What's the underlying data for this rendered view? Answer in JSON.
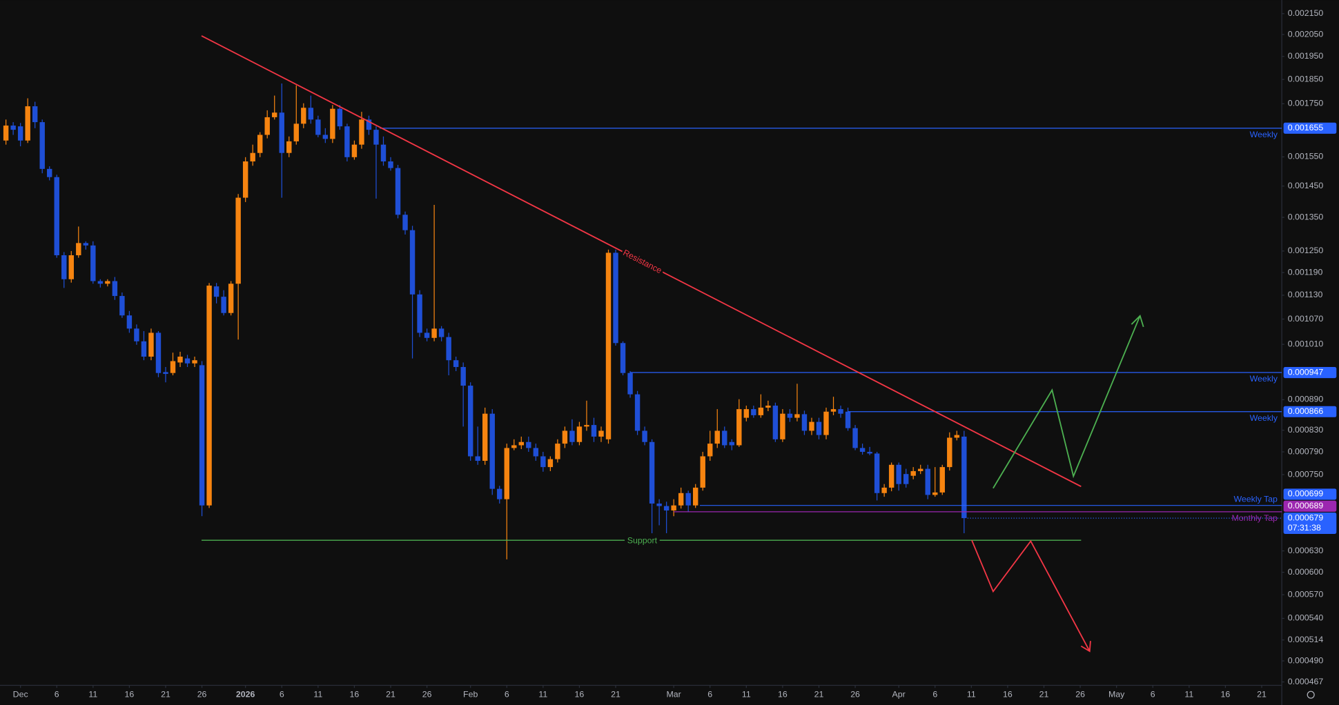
{
  "chart_data": {
    "type": "candlestick",
    "up_color": "#f68410",
    "down_color": "#1f4fd6",
    "log_scale": true,
    "xlim": [
      -2.82,
      173.65
    ],
    "ylim": [
      0.000467,
      0.00215
    ],
    "xticks": [
      {
        "value": 0,
        "label": "Dec"
      },
      {
        "value": 5,
        "label": "6"
      },
      {
        "value": 10,
        "label": "11"
      },
      {
        "value": 15,
        "label": "16"
      },
      {
        "value": 20,
        "label": "21"
      },
      {
        "value": 25,
        "label": "26"
      },
      {
        "value": 31,
        "label": "2026",
        "bold": true
      },
      {
        "value": 36,
        "label": "6"
      },
      {
        "value": 41,
        "label": "11"
      },
      {
        "value": 46,
        "label": "16"
      },
      {
        "value": 51,
        "label": "21"
      },
      {
        "value": 56,
        "label": "26"
      },
      {
        "value": 62,
        "label": "Feb"
      },
      {
        "value": 67,
        "label": "6"
      },
      {
        "value": 72,
        "label": "11"
      },
      {
        "value": 77,
        "label": "16"
      },
      {
        "value": 82,
        "label": "21"
      },
      {
        "value": 90,
        "label": "Mar"
      },
      {
        "value": 95,
        "label": "6"
      },
      {
        "value": 100,
        "label": "11"
      },
      {
        "value": 105,
        "label": "16"
      },
      {
        "value": 110,
        "label": "21"
      },
      {
        "value": 115,
        "label": "26"
      },
      {
        "value": 121,
        "label": "Apr"
      },
      {
        "value": 126,
        "label": "6"
      },
      {
        "value": 131,
        "label": "11"
      },
      {
        "value": 136,
        "label": "16"
      },
      {
        "value": 141,
        "label": "21"
      },
      {
        "value": 146,
        "label": "26"
      },
      {
        "value": 151,
        "label": "May"
      },
      {
        "value": 156,
        "label": "6"
      },
      {
        "value": 161,
        "label": "11"
      },
      {
        "value": 166,
        "label": "16"
      },
      {
        "value": 171,
        "label": "21"
      }
    ],
    "yticks": [
      {
        "value": 0.00215,
        "label": "0.002150"
      },
      {
        "value": 0.00205,
        "label": "0.002050"
      },
      {
        "value": 0.00195,
        "label": "0.001950"
      },
      {
        "value": 0.00185,
        "label": "0.001850"
      },
      {
        "value": 0.00175,
        "label": "0.001750"
      },
      {
        "value": 0.00155,
        "label": "0.001550"
      },
      {
        "value": 0.00145,
        "label": "0.001450"
      },
      {
        "value": 0.00135,
        "label": "0.001350"
      },
      {
        "value": 0.00125,
        "label": "0.001250"
      },
      {
        "value": 0.00119,
        "label": "0.001190"
      },
      {
        "value": 0.00113,
        "label": "0.001130"
      },
      {
        "value": 0.00107,
        "label": "0.001070"
      },
      {
        "value": 0.00101,
        "label": "0.001010"
      },
      {
        "value": 0.00089,
        "label": "0.000890"
      },
      {
        "value": 0.00083,
        "label": "0.000830"
      },
      {
        "value": 0.00079,
        "label": "0.000790"
      },
      {
        "value": 0.00075,
        "label": "0.000750"
      },
      {
        "value": 0.00063,
        "label": "0.000630"
      },
      {
        "value": 0.0006,
        "label": "0.000600"
      },
      {
        "value": 0.00057,
        "label": "0.000570"
      },
      {
        "value": 0.00054,
        "label": "0.000540"
      },
      0.000514,
      {
        "value": 0.00049,
        "label": "0.000490"
      },
      0.000467
    ],
    "levels": [
      {
        "value": 0.001655,
        "label": "0.001655",
        "name": "Weekly",
        "color": "#2962ff",
        "from": 49.5
      },
      {
        "value": 0.000947,
        "label": "0.000947",
        "name": "Weekly",
        "color": "#2962ff",
        "from": 84
      },
      {
        "value": 0.000866,
        "label": "0.000866",
        "name": "Weekly",
        "color": "#2962ff",
        "from": 114
      },
      {
        "value": 0.000699,
        "label": "0.000699",
        "name": "Weekly Tap",
        "color": "#2962ff",
        "from": 93.6
      },
      {
        "value": 0.000689,
        "label": "0.000689",
        "name": "Monthly Tap",
        "color": "#9c27b0",
        "from": 90
      }
    ],
    "last_price": {
      "value": 0.000679,
      "label": "0.000679",
      "countdown": "07:31:38",
      "color": "#2962ff"
    },
    "annotations": {
      "resistance": "Resistance",
      "support": "Support"
    },
    "x": [
      -2,
      -1,
      0,
      1,
      2,
      3,
      4,
      5,
      6,
      7,
      8,
      9,
      10,
      11,
      12,
      13,
      14,
      15,
      16,
      17,
      18,
      19,
      20,
      21,
      22,
      23,
      24,
      25,
      26,
      27,
      28,
      29,
      30,
      31,
      32,
      33,
      34,
      35,
      36,
      37,
      38,
      39,
      40,
      41,
      42,
      43,
      44,
      45,
      46,
      47,
      48,
      49,
      50,
      51,
      52,
      53,
      54,
      55,
      56,
      57,
      58,
      59,
      60,
      61,
      62,
      63,
      64,
      65,
      66,
      67,
      68,
      69,
      70,
      71,
      72,
      73,
      74,
      75,
      76,
      77,
      78,
      79,
      80,
      81,
      82,
      83,
      84,
      85,
      86,
      87,
      88,
      89,
      90,
      91,
      92,
      93,
      94,
      95,
      96,
      97,
      98,
      99,
      100,
      101,
      102,
      103,
      104,
      105,
      106,
      107,
      108,
      109,
      110,
      111,
      112,
      113,
      114,
      115,
      116,
      117,
      118,
      119,
      120,
      121,
      122,
      123,
      124,
      125,
      126,
      127,
      128,
      129,
      130
    ],
    "ohlc": [
      [
        0.001609,
        0.001688,
        0.001594,
        0.001665
      ],
      [
        0.001665,
        0.001678,
        0.00163,
        0.001649
      ],
      [
        0.001662,
        0.001675,
        0.001588,
        0.001609
      ],
      [
        0.001609,
        0.001772,
        0.0016,
        0.00174
      ],
      [
        0.00174,
        0.001758,
        0.001655,
        0.001678
      ],
      [
        0.001678,
        0.001688,
        0.001493,
        0.001508
      ],
      [
        0.001508,
        0.001517,
        0.001469,
        0.00148
      ],
      [
        0.00148,
        0.001488,
        0.001231,
        0.001238
      ],
      [
        0.001238,
        0.001247,
        0.001149,
        0.001172
      ],
      [
        0.001172,
        0.00125,
        0.001163,
        0.001238
      ],
      [
        0.001238,
        0.001322,
        0.001231,
        0.001273
      ],
      [
        0.001273,
        0.001278,
        0.001254,
        0.001266
      ],
      [
        0.001266,
        0.001278,
        0.00116,
        0.001167
      ],
      [
        0.001167,
        0.001172,
        0.00115,
        0.00116
      ],
      [
        0.00116,
        0.001172,
        0.001153,
        0.001167
      ],
      [
        0.001167,
        0.001178,
        0.001118,
        0.001128
      ],
      [
        0.001128,
        0.001137,
        0.001073,
        0.001079
      ],
      [
        0.001079,
        0.00109,
        0.001037,
        0.001047
      ],
      [
        0.001047,
        0.001057,
        0.001009,
        0.001017
      ],
      [
        0.001017,
        0.001041,
        0.000974,
        0.000982
      ],
      [
        0.000982,
        0.001047,
        0.000974,
        0.001037
      ],
      [
        0.001037,
        0.001041,
        0.000937,
        0.000946
      ],
      [
        0.000948,
        0.000959,
        0.000926,
        0.000944
      ],
      [
        0.000946,
        0.000991,
        0.000941,
        0.000972
      ],
      [
        0.000969,
        0.000993,
        0.000959,
        0.000982
      ],
      [
        0.000978,
        0.000986,
        0.000959,
        0.000967
      ],
      [
        0.000967,
        0.000982,
        0.000959,
        0.000974
      ],
      [
        0.000963,
        0.000972,
        0.000682,
        0.000699
      ],
      [
        0.000699,
        0.001162,
        0.000695,
        0.001155
      ],
      [
        0.001153,
        0.001162,
        0.001109,
        0.001126
      ],
      [
        0.001126,
        0.001143,
        0.001079,
        0.001085
      ],
      [
        0.001085,
        0.001167,
        0.001079,
        0.00116
      ],
      [
        0.00116,
        0.001424,
        0.001021,
        0.001412
      ],
      [
        0.001412,
        0.001549,
        0.001398,
        0.001534
      ],
      [
        0.001534,
        0.001594,
        0.001519,
        0.001564
      ],
      [
        0.001564,
        0.00164,
        0.001549,
        0.00163
      ],
      [
        0.00163,
        0.001724,
        0.001617,
        0.001697
      ],
      [
        0.001697,
        0.001783,
        0.001688,
        0.001715
      ],
      [
        0.001715,
        0.001833,
        0.001412,
        0.001564
      ],
      [
        0.001564,
        0.001624,
        0.001549,
        0.001606
      ],
      [
        0.001606,
        0.001825,
        0.001594,
        0.001672
      ],
      [
        0.001672,
        0.001752,
        0.001655,
        0.001734
      ],
      [
        0.001734,
        0.001783,
        0.001672,
        0.001688
      ],
      [
        0.001688,
        0.001703,
        0.001621,
        0.00163
      ],
      [
        0.00163,
        0.001655,
        0.0016,
        0.001615
      ],
      [
        0.001615,
        0.001745,
        0.0016,
        0.00173
      ],
      [
        0.00173,
        0.001745,
        0.001649,
        0.001662
      ],
      [
        0.001662,
        0.001672,
        0.001534,
        0.001549
      ],
      [
        0.001549,
        0.001609,
        0.00154,
        0.001594
      ],
      [
        0.001594,
        0.001718,
        0.001579,
        0.001688
      ],
      [
        0.001688,
        0.001703,
        0.00163,
        0.001649
      ],
      [
        0.001649,
        0.001662,
        0.001409,
        0.001594
      ],
      [
        0.001594,
        0.001624,
        0.001519,
        0.001534
      ],
      [
        0.001534,
        0.001549,
        0.001502,
        0.001511
      ],
      [
        0.001511,
        0.001522,
        0.001347,
        0.001358
      ],
      [
        0.001358,
        0.001368,
        0.001298,
        0.001311
      ],
      [
        0.001311,
        0.001324,
        0.000978,
        0.001132
      ],
      [
        0.001132,
        0.001143,
        0.001027,
        0.001037
      ],
      [
        0.001037,
        0.001047,
        0.001017,
        0.001025
      ],
      [
        0.001025,
        0.001389,
        0.001017,
        0.001047
      ],
      [
        0.001047,
        0.001053,
        0.001017,
        0.001027
      ],
      [
        0.001027,
        0.001037,
        0.000941,
        0.000974
      ],
      [
        0.000974,
        0.000982,
        0.00095,
        0.000959
      ],
      [
        0.000959,
        0.000969,
        0.000837,
        0.000919
      ],
      [
        0.000919,
        0.000926,
        0.000774,
        0.000782
      ],
      [
        0.000782,
        0.000837,
        0.000767,
        0.000774
      ],
      [
        0.000774,
        0.000874,
        0.000767,
        0.000862
      ],
      [
        0.000862,
        0.000871,
        0.000716,
        0.000726
      ],
      [
        0.000726,
        0.000731,
        0.000702,
        0.000709
      ],
      [
        0.000709,
        0.000805,
        0.000618,
        0.000797
      ],
      [
        0.000797,
        0.000813,
        0.000793,
        0.000802
      ],
      [
        0.000802,
        0.000818,
        0.000795,
        0.000808
      ],
      [
        0.000808,
        0.000818,
        0.00079,
        0.000797
      ],
      [
        0.000797,
        0.000805,
        0.000774,
        0.000782
      ],
      [
        0.000782,
        0.00079,
        0.000755,
        0.000763
      ],
      [
        0.000763,
        0.000782,
        0.000756,
        0.000777
      ],
      [
        0.000777,
        0.000813,
        0.000771,
        0.000805
      ],
      [
        0.000805,
        0.000837,
        0.000797,
        0.000829
      ],
      [
        0.000829,
        0.000851,
        0.000802,
        0.000808
      ],
      [
        0.000808,
        0.000846,
        0.000802,
        0.000837
      ],
      [
        0.000837,
        0.000888,
        0.000829,
        0.00084
      ],
      [
        0.00084,
        0.000854,
        0.000808,
        0.000818
      ],
      [
        0.000818,
        0.000837,
        0.000808,
        0.000829
      ],
      [
        0.000813,
        0.001254,
        0.000805,
        0.001245
      ],
      [
        0.001245,
        0.001254,
        0.001007,
        0.001013
      ],
      [
        0.001013,
        0.001017,
        0.000941,
        0.000946
      ],
      [
        0.000946,
        0.00095,
        0.000894,
        0.000901
      ],
      [
        0.000901,
        0.000908,
        0.000821,
        0.000829
      ],
      [
        0.000829,
        0.000837,
        0.000802,
        0.000808
      ],
      [
        0.000808,
        0.000813,
        0.000656,
        0.000702
      ],
      [
        0.000702,
        0.000709,
        0.000668,
        0.000698
      ],
      [
        0.000698,
        0.000705,
        0.000656,
        0.000691
      ],
      [
        0.000691,
        0.000709,
        0.000682,
        0.000699
      ],
      [
        0.000699,
        0.000728,
        0.000694,
        0.000719
      ],
      [
        0.000719,
        0.000723,
        0.000689,
        0.000699
      ],
      [
        0.000699,
        0.000734,
        0.000695,
        0.000728
      ],
      [
        0.000728,
        0.00079,
        0.000723,
        0.000782
      ],
      [
        0.000782,
        0.000829,
        0.000774,
        0.000805
      ],
      [
        0.000805,
        0.000871,
        0.000797,
        0.000829
      ],
      [
        0.000829,
        0.000837,
        0.000797,
        0.000802
      ],
      [
        0.000808,
        0.000813,
        0.000793,
        0.000802
      ],
      [
        0.000802,
        0.000891,
        0.000799,
        0.000871
      ],
      [
        0.000854,
        0.000878,
        0.000847,
        0.000871
      ],
      [
        0.000871,
        0.000878,
        0.000854,
        0.000859
      ],
      [
        0.000859,
        0.000901,
        0.000854,
        0.000874
      ],
      [
        0.000874,
        0.000888,
        0.000867,
        0.000878
      ],
      [
        0.000878,
        0.000884,
        0.000808,
        0.000813
      ],
      [
        0.000813,
        0.000871,
        0.000808,
        0.000862
      ],
      [
        0.000862,
        0.000871,
        0.000846,
        0.000854
      ],
      [
        0.000854,
        0.000923,
        0.000847,
        0.000861
      ],
      [
        0.000861,
        0.000868,
        0.000821,
        0.000829
      ],
      [
        0.000829,
        0.000854,
        0.000821,
        0.000846
      ],
      [
        0.000846,
        0.000854,
        0.000813,
        0.000821
      ],
      [
        0.000821,
        0.000874,
        0.000813,
        0.000866
      ],
      [
        0.000866,
        0.000896,
        0.000859,
        0.000871
      ],
      [
        0.000871,
        0.000878,
        0.000854,
        0.000862
      ],
      [
        0.000866,
        0.000874,
        0.000829,
        0.000834
      ],
      [
        0.000834,
        0.00084,
        0.000793,
        0.000797
      ],
      [
        0.000797,
        0.000805,
        0.000785,
        0.00079
      ],
      [
        0.00079,
        0.000799,
        0.000784,
        0.000787
      ],
      [
        0.000787,
        0.00079,
        0.000707,
        0.000719
      ],
      [
        0.000719,
        0.000734,
        0.000713,
        0.000728
      ],
      [
        0.000728,
        0.000771,
        0.000722,
        0.000767
      ],
      [
        0.000767,
        0.000771,
        0.000723,
        0.000734
      ],
      [
        0.000751,
        0.00076,
        0.000728,
        0.000734
      ],
      [
        0.000748,
        0.000763,
        0.000742,
        0.000756
      ],
      [
        0.000756,
        0.000767,
        0.000751,
        0.00076
      ],
      [
        0.00076,
        0.000767,
        0.000709,
        0.000716
      ],
      [
        0.000716,
        0.000763,
        0.000713,
        0.00072
      ],
      [
        0.00072,
        0.000767,
        0.000716,
        0.000763
      ],
      [
        0.000763,
        0.000826,
        0.000757,
        0.000816
      ],
      [
        0.000816,
        0.000829,
        0.000811,
        0.000821
      ],
      [
        0.000818,
        0.000829,
        0.000656,
        0.000679
      ]
    ]
  }
}
